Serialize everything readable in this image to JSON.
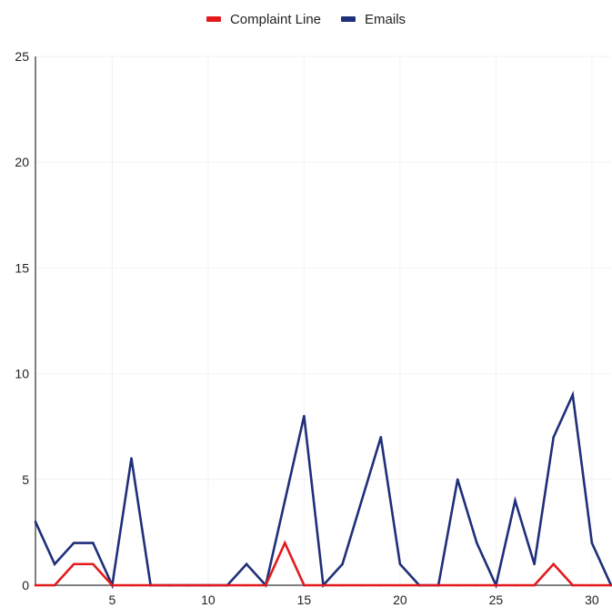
{
  "chart_data": {
    "type": "line",
    "x": [
      1,
      2,
      3,
      4,
      5,
      6,
      7,
      8,
      9,
      10,
      11,
      12,
      13,
      14,
      15,
      16,
      17,
      18,
      19,
      20,
      21,
      22,
      23,
      24,
      25,
      26,
      27,
      28,
      29,
      30,
      31
    ],
    "series": [
      {
        "name": "Complaint Line",
        "color": "#e31a1c",
        "values": [
          0,
          0,
          1,
          1,
          0,
          0,
          0,
          0,
          0,
          0,
          0,
          0,
          0,
          2,
          0,
          0,
          0,
          0,
          0,
          0,
          0,
          0,
          0,
          0,
          0,
          0,
          0,
          1,
          0,
          0,
          0
        ]
      },
      {
        "name": "Emails",
        "color": "#1f2f7a",
        "values": [
          3,
          1,
          2,
          2,
          0,
          6,
          0,
          0,
          0,
          0,
          0,
          1,
          0,
          4,
          8,
          0,
          1,
          4,
          7,
          1,
          0,
          0,
          5,
          2,
          0,
          4,
          1,
          7,
          9,
          2,
          0
        ]
      }
    ],
    "xticks": [
      "5",
      "10",
      "15",
      "20",
      "25",
      "30"
    ],
    "yticks": [
      "0",
      "5",
      "10",
      "15",
      "20",
      "25"
    ],
    "xlim": [
      1,
      31
    ],
    "ylim": [
      0,
      25
    ],
    "legend": "top-center",
    "grid": true
  }
}
